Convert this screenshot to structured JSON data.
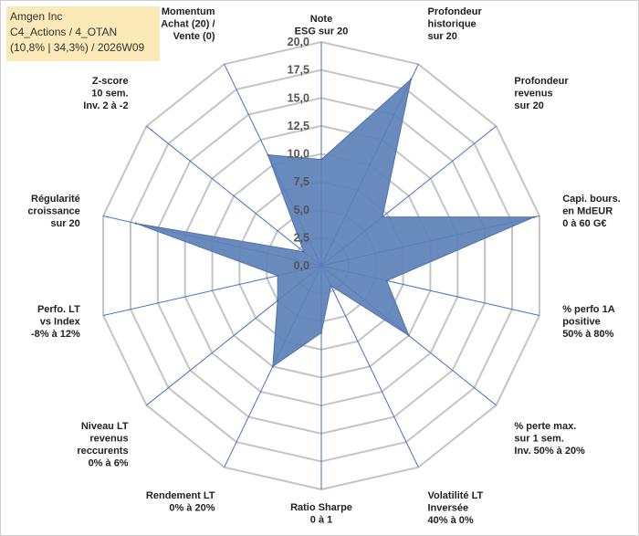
{
  "header": {
    "line1": "Amgen Inc",
    "line2": "C4_Actions / 4_OTAN",
    "line3": "(10,8% | 34,3%) / 2026W09"
  },
  "chart_data": {
    "type": "radar",
    "rmin": 0,
    "rmax": 20,
    "ticks": [
      "0,0",
      "2,5",
      "5,0",
      "7,5",
      "10,0",
      "12,5",
      "15,0",
      "17,5",
      "20,0"
    ],
    "categories": [
      [
        "Note",
        "ESG sur 20"
      ],
      [
        "Profondeur",
        "historique",
        "sur 20"
      ],
      [
        "Profondeur",
        "revenus",
        "sur 20"
      ],
      [
        "Capi. bours.",
        "en MdEUR",
        "0 à 60 G€"
      ],
      [
        "% perfo 1A",
        "positive",
        "50% à 80%"
      ],
      [
        "% perte max.",
        "sur 1 sem.",
        "Inv. 50% à 20%"
      ],
      [
        "Volatilité LT",
        "Inversée",
        "40% à 0%"
      ],
      [
        "Ratio Sharpe",
        "0 à 1"
      ],
      [
        "Rendement LT",
        "0% à 20%"
      ],
      [
        "Niveau LT",
        "revenus",
        "reccurents",
        "0% à 6%"
      ],
      [
        "Perfo. LT",
        "vs Index",
        "-8% à 12%"
      ],
      [
        "Régularité",
        "croissance",
        "sur 20"
      ],
      [
        "Z-score",
        "10 sem.",
        "Inv. 2 à -2"
      ],
      [
        "Momentum",
        "Achat (20) /",
        "Vente (0)"
      ]
    ],
    "series": [
      {
        "values": [
          9.5,
          18.5,
          7.0,
          19.5,
          6.0,
          10.0,
          2.0,
          6.0,
          10.0,
          5.0,
          4.0,
          17.0,
          2.0,
          11.0
        ]
      }
    ],
    "colors": {
      "fill": "#5b80b7",
      "stroke": "#4f74ad",
      "spoke": "#4472c4",
      "grid": "#c4c4c4"
    }
  }
}
